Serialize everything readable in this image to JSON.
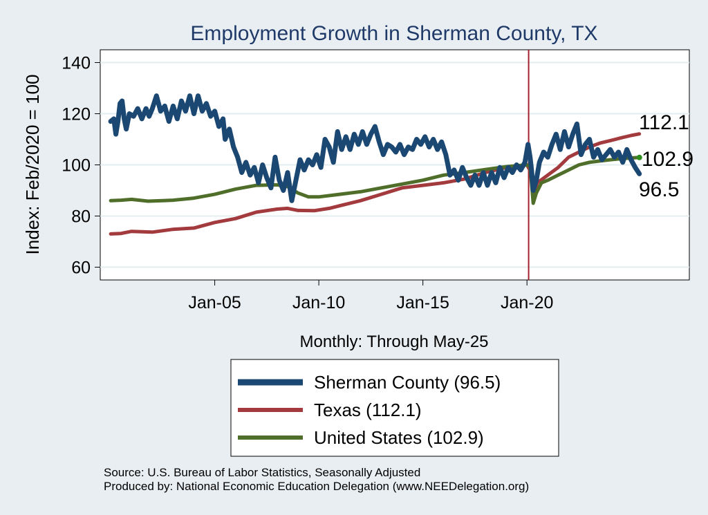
{
  "chart_data": {
    "type": "line",
    "title": "Employment Growth in Sherman  County, TX",
    "ylabel": "Index: Feb/2020 = 100",
    "xlabel": "Monthly: Through May-25",
    "xlim": [
      1999.5,
      2027.8
    ],
    "ylim": [
      55,
      145
    ],
    "yticks": [
      60,
      80,
      100,
      120,
      140
    ],
    "xticks": [
      {
        "value": 2005.0,
        "label": "Jan-05"
      },
      {
        "value": 2010.0,
        "label": "Jan-10"
      },
      {
        "value": 2015.0,
        "label": "Jan-15"
      },
      {
        "value": 2020.0,
        "label": "Jan-20"
      }
    ],
    "reference_line": {
      "x": 2020.08,
      "color": "#a3202e"
    },
    "series": [
      {
        "name": "Sherman  County",
        "legend_label": "Sherman  County (96.5)",
        "end_label": "96.5",
        "color": "#1b4872",
        "width": 7,
        "points": [
          [
            2000.0,
            117
          ],
          [
            2000.15,
            118
          ],
          [
            2000.25,
            112
          ],
          [
            2000.35,
            117
          ],
          [
            2000.45,
            124
          ],
          [
            2000.55,
            125
          ],
          [
            2000.65,
            118
          ],
          [
            2000.75,
            114
          ],
          [
            2000.9,
            120
          ],
          [
            2001.1,
            119
          ],
          [
            2001.3,
            122
          ],
          [
            2001.5,
            118
          ],
          [
            2001.7,
            122
          ],
          [
            2001.85,
            119
          ],
          [
            2002.0,
            122
          ],
          [
            2002.2,
            127
          ],
          [
            2002.4,
            121
          ],
          [
            2002.6,
            123
          ],
          [
            2002.8,
            117
          ],
          [
            2003.0,
            123
          ],
          [
            2003.2,
            118
          ],
          [
            2003.4,
            125
          ],
          [
            2003.6,
            121
          ],
          [
            2003.8,
            127
          ],
          [
            2004.0,
            120
          ],
          [
            2004.2,
            127
          ],
          [
            2004.4,
            121
          ],
          [
            2004.6,
            124
          ],
          [
            2004.8,
            119
          ],
          [
            2005.0,
            121
          ],
          [
            2005.2,
            115
          ],
          [
            2005.4,
            118
          ],
          [
            2005.5,
            110
          ],
          [
            2005.7,
            114
          ],
          [
            2005.9,
            107
          ],
          [
            2006.1,
            103
          ],
          [
            2006.3,
            97
          ],
          [
            2006.5,
            101
          ],
          [
            2006.7,
            96
          ],
          [
            2006.9,
            99
          ],
          [
            2007.1,
            93
          ],
          [
            2007.3,
            100
          ],
          [
            2007.5,
            95
          ],
          [
            2007.7,
            91
          ],
          [
            2007.9,
            103
          ],
          [
            2008.1,
            94
          ],
          [
            2008.3,
            90
          ],
          [
            2008.5,
            97
          ],
          [
            2008.7,
            86
          ],
          [
            2008.9,
            94
          ],
          [
            2009.1,
            102
          ],
          [
            2009.3,
            98
          ],
          [
            2009.5,
            102
          ],
          [
            2009.7,
            100
          ],
          [
            2009.9,
            104
          ],
          [
            2010.1,
            99
          ],
          [
            2010.3,
            110
          ],
          [
            2010.5,
            107
          ],
          [
            2010.7,
            101
          ],
          [
            2010.9,
            113
          ],
          [
            2011.1,
            106
          ],
          [
            2011.3,
            111
          ],
          [
            2011.5,
            106
          ],
          [
            2011.7,
            112
          ],
          [
            2011.9,
            108
          ],
          [
            2012.1,
            113
          ],
          [
            2012.3,
            108
          ],
          [
            2012.5,
            112
          ],
          [
            2012.7,
            115
          ],
          [
            2012.9,
            109
          ],
          [
            2013.1,
            104
          ],
          [
            2013.3,
            108
          ],
          [
            2013.5,
            107
          ],
          [
            2013.7,
            105
          ],
          [
            2013.9,
            108
          ],
          [
            2014.1,
            104
          ],
          [
            2014.3,
            107
          ],
          [
            2014.5,
            106
          ],
          [
            2014.7,
            110
          ],
          [
            2014.9,
            108
          ],
          [
            2015.1,
            111
          ],
          [
            2015.3,
            107
          ],
          [
            2015.5,
            110
          ],
          [
            2015.7,
            106
          ],
          [
            2015.9,
            109
          ],
          [
            2016.1,
            104
          ],
          [
            2016.3,
            96
          ],
          [
            2016.5,
            98
          ],
          [
            2016.7,
            94
          ],
          [
            2016.9,
            99
          ],
          [
            2017.1,
            95
          ],
          [
            2017.3,
            92
          ],
          [
            2017.5,
            96
          ],
          [
            2017.7,
            92
          ],
          [
            2017.9,
            97
          ],
          [
            2018.1,
            92
          ],
          [
            2018.3,
            97
          ],
          [
            2018.5,
            93
          ],
          [
            2018.7,
            99
          ],
          [
            2018.9,
            95
          ],
          [
            2019.1,
            99
          ],
          [
            2019.3,
            97
          ],
          [
            2019.5,
            100
          ],
          [
            2019.7,
            98
          ],
          [
            2019.9,
            101
          ],
          [
            2020.05,
            108
          ],
          [
            2020.15,
            103
          ],
          [
            2020.22,
            98
          ],
          [
            2020.3,
            90
          ],
          [
            2020.45,
            94
          ],
          [
            2020.6,
            101
          ],
          [
            2020.8,
            105
          ],
          [
            2021.0,
            103
          ],
          [
            2021.2,
            108
          ],
          [
            2021.4,
            112
          ],
          [
            2021.6,
            106
          ],
          [
            2021.8,
            113
          ],
          [
            2022.0,
            107
          ],
          [
            2022.2,
            112
          ],
          [
            2022.4,
            116
          ],
          [
            2022.6,
            104
          ],
          [
            2022.8,
            108
          ],
          [
            2023.0,
            110
          ],
          [
            2023.2,
            103
          ],
          [
            2023.4,
            106
          ],
          [
            2023.6,
            102
          ],
          [
            2023.8,
            104
          ],
          [
            2024.0,
            106
          ],
          [
            2024.2,
            103
          ],
          [
            2024.4,
            105
          ],
          [
            2024.6,
            101
          ],
          [
            2024.8,
            106
          ],
          [
            2025.0,
            102
          ],
          [
            2025.2,
            99
          ],
          [
            2025.4,
            96.5
          ]
        ]
      },
      {
        "name": "Texas",
        "legend_label": "Texas (112.1)",
        "end_label": "112.1",
        "color": "#a33b3e",
        "width": 5,
        "points": [
          [
            2000.0,
            73
          ],
          [
            2000.5,
            73.2
          ],
          [
            2001.0,
            74
          ],
          [
            2002.0,
            73.7
          ],
          [
            2003.0,
            74.8
          ],
          [
            2004.0,
            75.3
          ],
          [
            2005.0,
            77.5
          ],
          [
            2006.0,
            79
          ],
          [
            2007.0,
            81.5
          ],
          [
            2008.0,
            82.7
          ],
          [
            2008.5,
            83
          ],
          [
            2009.0,
            82.2
          ],
          [
            2009.8,
            82.1
          ],
          [
            2010.5,
            83
          ],
          [
            2011.0,
            84
          ],
          [
            2012.0,
            86
          ],
          [
            2013.0,
            88.5
          ],
          [
            2014.0,
            91
          ],
          [
            2015.0,
            92
          ],
          [
            2016.0,
            93
          ],
          [
            2017.0,
            94.5
          ],
          [
            2018.0,
            97
          ],
          [
            2019.0,
            99
          ],
          [
            2020.0,
            100
          ],
          [
            2020.2,
            97
          ],
          [
            2020.3,
            88
          ],
          [
            2020.5,
            93
          ],
          [
            2021.0,
            96
          ],
          [
            2021.5,
            99
          ],
          [
            2022.0,
            103
          ],
          [
            2022.5,
            105
          ],
          [
            2023.0,
            107
          ],
          [
            2023.5,
            108.5
          ],
          [
            2024.0,
            109.5
          ],
          [
            2024.5,
            110.5
          ],
          [
            2025.0,
            111.5
          ],
          [
            2025.4,
            112.1
          ]
        ]
      },
      {
        "name": "United States",
        "legend_label": "United States (102.9)",
        "end_label": "102.9",
        "color": "#4f6e2a",
        "width": 5,
        "points": [
          [
            2000.0,
            86
          ],
          [
            2000.5,
            86.2
          ],
          [
            2001.0,
            86.5
          ],
          [
            2001.8,
            85.8
          ],
          [
            2002.5,
            86
          ],
          [
            2003.0,
            86.2
          ],
          [
            2004.0,
            87
          ],
          [
            2005.0,
            88.5
          ],
          [
            2006.0,
            90.5
          ],
          [
            2007.0,
            92
          ],
          [
            2008.0,
            92.2
          ],
          [
            2008.5,
            91.5
          ],
          [
            2009.0,
            89
          ],
          [
            2009.5,
            87.5
          ],
          [
            2010.0,
            87.5
          ],
          [
            2011.0,
            88.5
          ],
          [
            2012.0,
            89.5
          ],
          [
            2013.0,
            91
          ],
          [
            2014.0,
            92.5
          ],
          [
            2015.0,
            94
          ],
          [
            2016.0,
            96
          ],
          [
            2017.0,
            97
          ],
          [
            2018.0,
            98.2
          ],
          [
            2019.0,
            99.3
          ],
          [
            2020.0,
            100
          ],
          [
            2020.15,
            99.5
          ],
          [
            2020.3,
            85
          ],
          [
            2020.45,
            89
          ],
          [
            2020.7,
            93
          ],
          [
            2021.0,
            94
          ],
          [
            2021.5,
            96
          ],
          [
            2022.0,
            98
          ],
          [
            2022.5,
            100
          ],
          [
            2023.0,
            101
          ],
          [
            2023.5,
            101.5
          ],
          [
            2024.0,
            102
          ],
          [
            2024.5,
            102.4
          ],
          [
            2025.0,
            102.7
          ],
          [
            2025.4,
            102.9
          ]
        ]
      }
    ]
  },
  "source": {
    "line1": "Source: U.S. Bureau of Labor Statistics, Seasonally Adjusted",
    "line2": "Produced by: National Economic Education Delegation (www.NEEDelegation.org)"
  }
}
